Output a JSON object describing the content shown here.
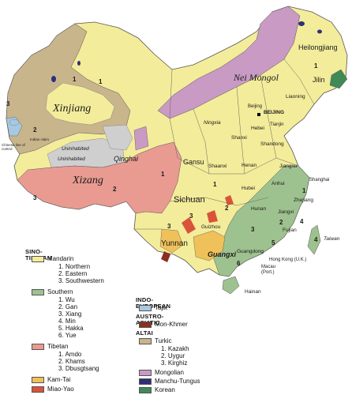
{
  "colors": {
    "mandarin": "#f3ec9a",
    "southern": "#9ec28f",
    "tibetan": "#e99b91",
    "kam_tai": "#f0c05a",
    "miao_yao": "#d9533a",
    "tajik": "#a8c8e2",
    "mon_khmer": "#8a2f22",
    "turkic": "#c9b58c",
    "mongolian": "#c89ac4",
    "manchu_tungus": "#2f2f7a",
    "korean": "#3f8a57",
    "uninhabited": "#cfcfcf"
  },
  "map_labels": {
    "xinjiang": "Xinjiang",
    "xizang": "Xizang",
    "qinghai": "Qinghai",
    "uninhabited_1": "Uninhabited",
    "uninhabited_2": "Uninhabited",
    "nei_mongol": "Nei Mongol",
    "ningxia": "Ningxia",
    "gansu": "Gansu",
    "sichuan": "Sichuan",
    "yunnan": "Yunnan",
    "guizhou": "Guizhou",
    "guangxi": "Guangxi",
    "heilongjiang": "Heilongjiang",
    "jilin": "Jilin",
    "liaoning": "Liaoning",
    "beijing_capital": "BEIJING",
    "beijing": "Beijing",
    "tianjin": "Tianjin",
    "hebei": "Hebei",
    "shanxi": "Shanxi",
    "shandong": "Shandong",
    "henan": "Henan",
    "shaanxi": "Shaanxi",
    "hubei": "Hubei",
    "anhui": "Anhui",
    "jiangsu": "Jiangsu",
    "shanghai": "Shanghai",
    "zhejiang": "Zhejiang",
    "jiangxi": "Jiangxi",
    "hunan": "Hunan",
    "fujian": "Fujian",
    "guangdong": "Guangdong",
    "hainan": "Hainan",
    "taiwan": "Taiwan",
    "hong_kong": "Hong Kong (U.K.)",
    "macau": "Macau",
    "macau_port": "(Port.)",
    "chinese_line": "Chinese line of control",
    "indian_claim": "Indian claim"
  },
  "map_numbers": {
    "xj1": "1",
    "xj2": "2",
    "xj3": "3",
    "xz1": "1",
    "xz2": "2",
    "xz3": "3",
    "sc1": "1",
    "sc3": "3",
    "hl1": "1",
    "hl1b": "1",
    "s1": "1",
    "s2": "2",
    "s3": "3",
    "s4": "4",
    "s4b": "4",
    "s5": "5",
    "s6": "6",
    "m2": "2",
    "m3": "3"
  },
  "legend": {
    "sino_tibetan": "SINO-TIBETAN",
    "mandarin": "Mandarin",
    "mandarin_1": "1.  Northern",
    "mandarin_2": "2.  Eastern",
    "mandarin_3": "3.  Southwestern",
    "southern": "Southern",
    "southern_1": "1.  Wu",
    "southern_2": "2.  Gan",
    "southern_3": "3.  Xiang",
    "southern_4": "4.  Min",
    "southern_5": "5.  Hakka",
    "southern_6": "6.  Yue",
    "tibetan": "Tibetan",
    "tibetan_1": "1.  Amdo",
    "tibetan_2": "2.  Khams",
    "tibetan_3": "3.  Dbusgtsang",
    "kam_tai": "Kam-Tai",
    "miao_yao": "Miao-Yao",
    "indo_european": "INDO-EUROPEAN",
    "tajik": "Tajik",
    "austro_asiatic": "AUSTRO-ASIATIC",
    "mon_khmer": "Mon-Khmer",
    "altai": "ALTAI",
    "turkic": "Turkic",
    "turkic_1": "1.  Kazakh",
    "turkic_2": "2.  Uygur",
    "turkic_3": "3.  Kirghiz",
    "mongolian": "Mongolian",
    "manchu_tungus": "Manchu-Tungus",
    "korean": "Korean"
  }
}
